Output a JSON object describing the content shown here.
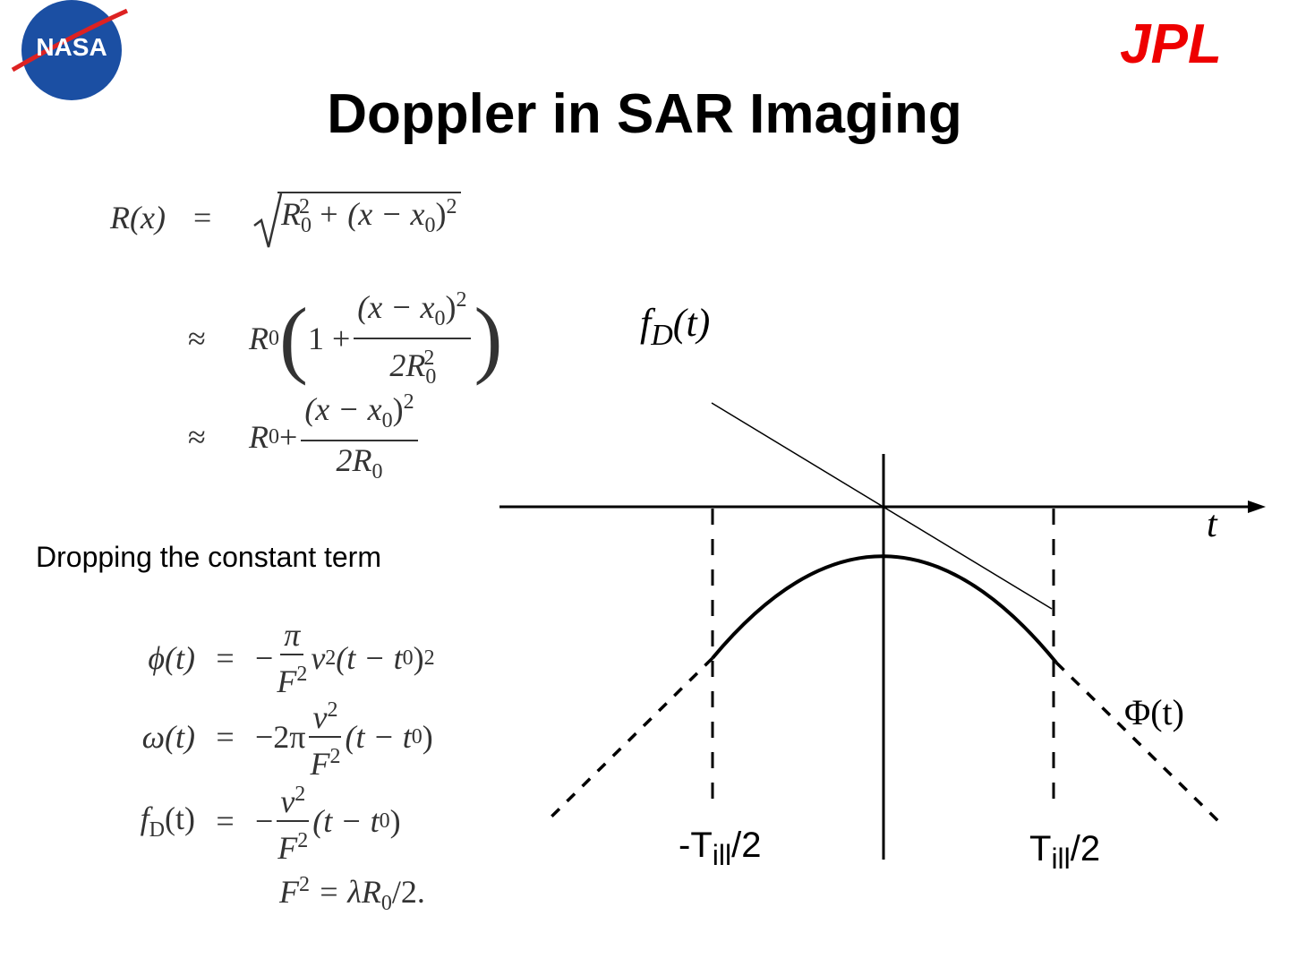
{
  "logos": {
    "left": "NASA",
    "right": "JPL"
  },
  "title": "Doppler in SAR Imaging",
  "equations_top": [
    {
      "lhs": [
        "R(x)"
      ],
      "rel": "=",
      "rhs": [
        "R",
        "0",
        "2",
        " + (x − x",
        "0",
        ")",
        "2"
      ]
    },
    {
      "rel": "≈",
      "rhs": [
        "R",
        "0",
        "(",
        "1 +",
        "(x − x",
        "0",
        ")",
        "2",
        "2R",
        "0",
        "2",
        ")"
      ]
    },
    {
      "rel": "≈",
      "rhs": [
        "R",
        "0",
        " +",
        "(x − x",
        "0",
        ")",
        "2",
        "2R",
        "0"
      ]
    }
  ],
  "note": "Dropping the constant term",
  "equations_bottom": [
    {
      "lhs": [
        "ϕ(t)"
      ],
      "rel": "=",
      "rhs": [
        "−",
        "π",
        "F",
        "2",
        "v",
        "2",
        "(t − t",
        "0",
        ")",
        "2"
      ]
    },
    {
      "lhs": [
        "ω(t)"
      ],
      "rel": "=",
      "rhs": [
        "−2π",
        "v",
        "2",
        "F",
        "2",
        "(t − t",
        "0",
        ")"
      ]
    },
    {
      "lhs": [
        "f",
        "D",
        "(t)"
      ],
      "rel": "=",
      "rhs": [
        "−",
        "v",
        "2",
        "F",
        "2",
        "(t − t",
        "0",
        ")"
      ]
    },
    {
      "rhs": [
        "F",
        "2",
        " = λR",
        "0",
        "/2."
      ]
    }
  ],
  "diagram": {
    "y_label": [
      "f",
      "D",
      "(t)"
    ],
    "t_label": "t",
    "phase_label": "Φ(t)",
    "left_label": [
      "-T",
      "ill",
      "/2"
    ],
    "right_label": [
      "T",
      "ill",
      "/2"
    ]
  }
}
